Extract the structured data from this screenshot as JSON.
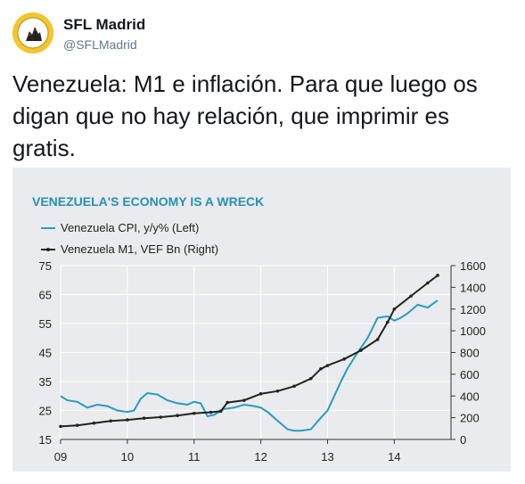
{
  "account": {
    "display_name": "SFL Madrid",
    "handle": "@SFLMadrid",
    "avatar_icon": "madrid-region-logo"
  },
  "tweet": {
    "text": "Venezuela: M1 e inflación. Para que luego os digan que no hay relación, que imprimir es gratis."
  },
  "colors": {
    "cpi_line": "#2a9bbf",
    "m1_line": "#222222",
    "chart_title": "#2a8fb3",
    "chart_bg": "#e9ebee"
  },
  "chart_data": {
    "type": "line",
    "title": "VENEZUELA'S ECONOMY IS A WRECK",
    "x_tick_labels": [
      "09",
      "10",
      "11",
      "12",
      "13",
      "14"
    ],
    "x_range": [
      2009.0,
      2014.85
    ],
    "y_left": {
      "ticks": [
        "15",
        "25",
        "35",
        "45",
        "55",
        "65",
        "75"
      ],
      "range": [
        15,
        75
      ]
    },
    "y_right": {
      "ticks": [
        "0",
        "200",
        "400",
        "600",
        "800",
        "1000",
        "1200",
        "1400",
        "1600"
      ],
      "range": [
        0,
        1600
      ]
    },
    "grid": true,
    "legend_position": "top-left",
    "series": [
      {
        "name": "Venezuela CPI, y/y% (Left)",
        "axis": "left",
        "x": [
          2009.0,
          2009.1,
          2009.25,
          2009.4,
          2009.55,
          2009.7,
          2009.85,
          2010.0,
          2010.1,
          2010.2,
          2010.3,
          2010.45,
          2010.6,
          2010.75,
          2010.9,
          2011.0,
          2011.1,
          2011.2,
          2011.3,
          2011.45,
          2011.6,
          2011.75,
          2011.9,
          2012.0,
          2012.1,
          2012.25,
          2012.4,
          2012.5,
          2012.6,
          2012.75,
          2012.9,
          2013.0,
          2013.1,
          2013.2,
          2013.3,
          2013.45,
          2013.6,
          2013.75,
          2013.9,
          2014.0,
          2014.1,
          2014.2,
          2014.35,
          2014.5,
          2014.65
        ],
        "values": [
          30,
          28.5,
          28,
          26,
          27,
          26.5,
          25,
          24.5,
          25,
          29,
          31,
          30.5,
          28.5,
          27.5,
          27,
          28,
          27.5,
          23,
          23.5,
          25.5,
          26,
          27,
          26.5,
          26,
          24.5,
          21.5,
          18.5,
          18,
          18,
          18.5,
          22.5,
          25,
          30,
          35,
          39.5,
          45,
          50,
          57,
          57.5,
          56,
          57,
          58.5,
          61.5,
          60.5,
          63
        ]
      },
      {
        "name": "Venezuela M1, VEF Bn (Right)",
        "axis": "right",
        "x": [
          2009.0,
          2009.25,
          2009.5,
          2009.75,
          2010.0,
          2010.25,
          2010.5,
          2010.75,
          2011.0,
          2011.25,
          2011.4,
          2011.5,
          2011.75,
          2012.0,
          2012.25,
          2012.5,
          2012.75,
          2012.9,
          2013.0,
          2013.25,
          2013.5,
          2013.75,
          2013.9,
          2014.0,
          2014.25,
          2014.5,
          2014.65
        ],
        "values": [
          120,
          130,
          150,
          170,
          180,
          195,
          205,
          220,
          240,
          250,
          260,
          340,
          360,
          420,
          445,
          490,
          560,
          650,
          680,
          740,
          820,
          920,
          1080,
          1200,
          1320,
          1440,
          1510
        ]
      }
    ]
  }
}
